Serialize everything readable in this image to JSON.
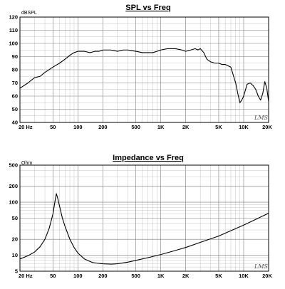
{
  "chart_data": [
    {
      "type": "line",
      "title": "SPL vs Freq",
      "ylabel": "dBSPL",
      "xlabel": "",
      "xscale": "log",
      "xlim": [
        20,
        20000
      ],
      "ylim": [
        40,
        120
      ],
      "x_ticks": [
        20,
        50,
        100,
        200,
        500,
        1000,
        2000,
        5000,
        10000,
        20000
      ],
      "x_tick_labels": [
        "20 Hz",
        "50",
        "100",
        "200",
        "500",
        "1K",
        "2K",
        "5K",
        "10K",
        "20K"
      ],
      "y_ticks": [
        40,
        50,
        60,
        70,
        80,
        90,
        100,
        110,
        120
      ],
      "y_tick_labels": [
        "40",
        "50",
        "60",
        "70",
        "80",
        "90",
        "100",
        "110",
        "120"
      ],
      "grid": true,
      "brand": "LMS",
      "series": [
        {
          "x": [
            20,
            25,
            30,
            35,
            40,
            50,
            60,
            70,
            80,
            90,
            100,
            120,
            140,
            160,
            180,
            200,
            250,
            300,
            350,
            400,
            500,
            600,
            700,
            800,
            900,
            1000,
            1200,
            1500,
            1800,
            2000,
            2300,
            2600,
            2800,
            3000,
            3300,
            3600,
            4000,
            4500,
            5000,
            5500,
            6000,
            7000,
            8000,
            8500,
            9000,
            9500,
            10000,
            11000,
            12000,
            13000,
            14000,
            15000,
            16000,
            17000,
            18000,
            19000,
            20000
          ],
          "y": [
            66,
            70,
            74,
            75,
            78,
            82,
            85,
            88,
            91,
            93,
            94,
            94,
            93,
            94,
            94,
            95,
            95,
            94,
            95,
            95,
            94,
            93,
            93,
            93,
            94,
            95,
            96,
            96,
            95,
            94,
            95,
            96,
            95,
            96,
            93,
            88,
            86,
            85,
            85,
            84,
            84,
            82,
            70,
            62,
            55,
            57,
            60,
            69,
            70,
            68,
            65,
            60,
            57,
            62,
            71,
            66,
            56
          ]
        }
      ]
    },
    {
      "type": "line",
      "title": "Impedance vs Freq",
      "ylabel": "Ohm",
      "xlabel": "",
      "xscale": "log",
      "yscale": "log",
      "xlim": [
        20,
        20000
      ],
      "ylim": [
        5,
        500
      ],
      "x_ticks": [
        20,
        50,
        100,
        200,
        500,
        1000,
        2000,
        5000,
        10000,
        20000
      ],
      "x_tick_labels": [
        "20 Hz",
        "50",
        "100",
        "200",
        "500",
        "1K",
        "2K",
        "5K",
        "10K",
        "20K"
      ],
      "y_ticks": [
        5,
        10,
        20,
        50,
        100,
        200,
        500
      ],
      "y_tick_labels": [
        "5",
        "10",
        "20",
        "50",
        "100",
        "200",
        "500"
      ],
      "grid": true,
      "brand": "LMS",
      "series": [
        {
          "x": [
            20,
            25,
            30,
            35,
            40,
            45,
            50,
            53,
            55,
            57,
            60,
            65,
            70,
            80,
            90,
            100,
            120,
            150,
            180,
            200,
            250,
            300,
            400,
            500,
            700,
            1000,
            1500,
            2000,
            3000,
            5000,
            7000,
            10000,
            15000,
            20000
          ],
          "y": [
            8.5,
            9.8,
            11.5,
            14.5,
            20,
            32,
            60,
            105,
            145,
            120,
            85,
            50,
            35,
            20,
            14,
            11,
            8.5,
            7.3,
            7,
            6.9,
            6.8,
            6.9,
            7.4,
            8,
            9,
            10.3,
            12.3,
            14,
            17.5,
            23,
            29,
            37,
            50,
            62
          ]
        }
      ]
    }
  ]
}
